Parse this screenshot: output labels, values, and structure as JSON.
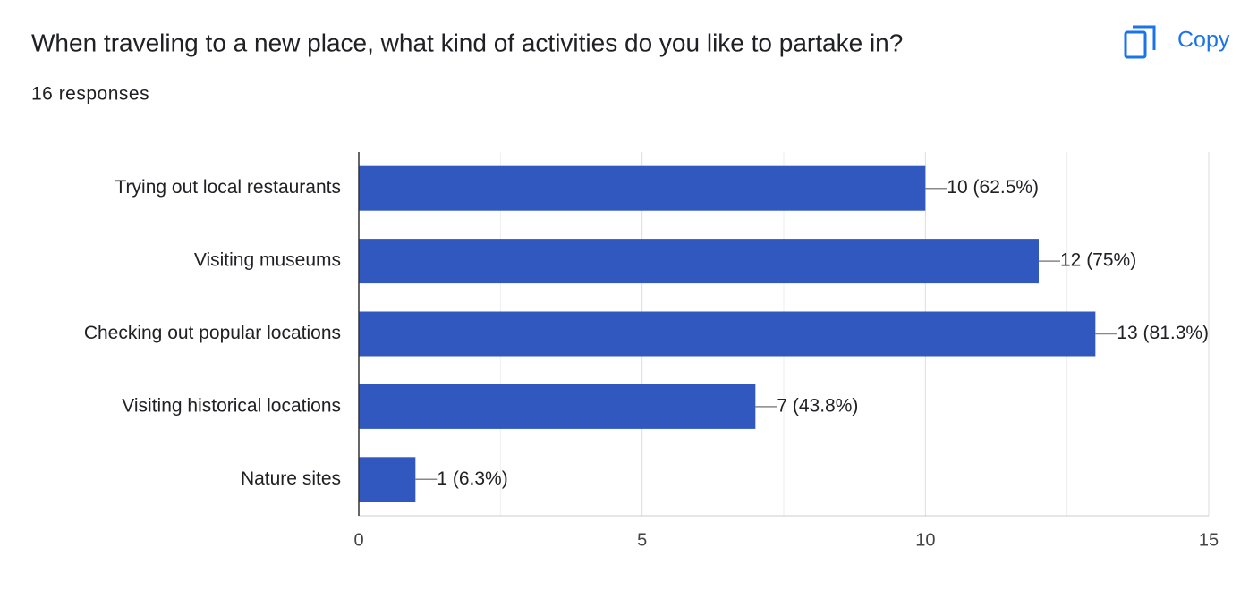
{
  "chart_data": {
    "type": "bar",
    "orientation": "horizontal",
    "title": "When traveling to a new place, what kind of activities do you like to partake in?",
    "subtitle": "16 responses",
    "copy_button": "Copy",
    "categories": [
      "Trying out local restaurants",
      "Visiting museums",
      "Checking out popular locations",
      "Visiting historical locations",
      "Nature sites"
    ],
    "values": [
      10,
      12,
      13,
      7,
      1
    ],
    "value_labels": [
      "10 (62.5%)",
      "12 (75%)",
      "13 (81.3%)",
      "7 (43.8%)",
      "1 (6.3%)"
    ],
    "color": "#3058bf",
    "xlim": [
      0,
      15
    ],
    "xticks": [
      0,
      5,
      10,
      15
    ],
    "xminorticks": [
      2.5,
      7.5,
      12.5
    ],
    "grid": true
  }
}
